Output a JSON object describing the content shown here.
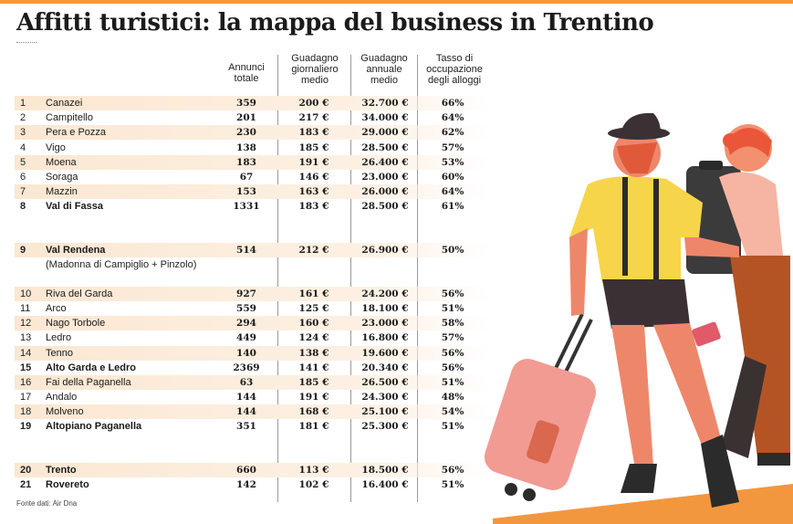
{
  "title": "Affitti turistici: la mappa del business in Trentino",
  "headers": {
    "annunci": "Annunci totale",
    "giornaliero": "Guadagno giornaliero medio",
    "annuale": "Guadagno annuale medio",
    "tasso": "Tasso di occupazione degli alloggi"
  },
  "rows": [
    {
      "n": "1",
      "name": "Canazei",
      "annunci": "359",
      "giorn": "200 €",
      "ann": "32.700 €",
      "tasso": "66%"
    },
    {
      "n": "2",
      "name": "Campitello",
      "annunci": "201",
      "giorn": "217 €",
      "ann": "34.000 €",
      "tasso": "64%"
    },
    {
      "n": "3",
      "name": "Pera e Pozza",
      "annunci": "230",
      "giorn": "183 €",
      "ann": "29.000 €",
      "tasso": "62%"
    },
    {
      "n": "4",
      "name": "Vigo",
      "annunci": "138",
      "giorn": "185 €",
      "ann": "28.500 €",
      "tasso": "57%"
    },
    {
      "n": "5",
      "name": "Moena",
      "annunci": "183",
      "giorn": "191 €",
      "ann": "26.400 €",
      "tasso": "53%"
    },
    {
      "n": "6",
      "name": "Soraga",
      "annunci": "67",
      "giorn": "146 €",
      "ann": "23.000 €",
      "tasso": "60%"
    },
    {
      "n": "7",
      "name": "Mazzin",
      "annunci": "153",
      "giorn": "163 €",
      "ann": "26.000 €",
      "tasso": "64%"
    },
    {
      "n": "8",
      "name": "Val di Fassa",
      "annunci": "1331",
      "giorn": "183 €",
      "ann": "28.500 €",
      "tasso": "61%"
    },
    {
      "n": "9",
      "name": "Val Rendena",
      "annunci": "514",
      "giorn": "212 €",
      "ann": "26.900 €",
      "tasso": "50%"
    },
    {
      "n": "10",
      "name": "Riva del Garda",
      "annunci": "927",
      "giorn": "161 €",
      "ann": "24.200 €",
      "tasso": "56%"
    },
    {
      "n": "11",
      "name": "Arco",
      "annunci": "559",
      "giorn": "125 €",
      "ann": "18.100 €",
      "tasso": "51%"
    },
    {
      "n": "12",
      "name": "Nago Torbole",
      "annunci": "294",
      "giorn": "160 €",
      "ann": "23.000 €",
      "tasso": "58%"
    },
    {
      "n": "13",
      "name": "Ledro",
      "annunci": "449",
      "giorn": "124 €",
      "ann": "16.800 €",
      "tasso": "57%"
    },
    {
      "n": "14",
      "name": "Tenno",
      "annunci": "140",
      "giorn": "138 €",
      "ann": "19.600 €",
      "tasso": "56%"
    },
    {
      "n": "15",
      "name": "Alto Garda e Ledro",
      "annunci": "2369",
      "giorn": "141 €",
      "ann": "20.340 €",
      "tasso": "56%"
    },
    {
      "n": "16",
      "name": "Fai della Paganella",
      "annunci": "63",
      "giorn": "185 €",
      "ann": "26.500 €",
      "tasso": "51%"
    },
    {
      "n": "17",
      "name": "Andalo",
      "annunci": "144",
      "giorn": "191 €",
      "ann": "24.300 €",
      "tasso": "48%"
    },
    {
      "n": "18",
      "name": "Molveno",
      "annunci": "144",
      "giorn": "168 €",
      "ann": "25.100 €",
      "tasso": "54%"
    },
    {
      "n": "19",
      "name": "Altopiano Paganella",
      "annunci": "351",
      "giorn": "181 €",
      "ann": "25.300 €",
      "tasso": "51%"
    },
    {
      "n": "20",
      "name": "Trento",
      "annunci": "660",
      "giorn": "113 €",
      "ann": "18.500 €",
      "tasso": "56%"
    },
    {
      "n": "21",
      "name": "Rovereto",
      "annunci": "142",
      "giorn": "102 €",
      "ann": "16.400 €",
      "tasso": "51%"
    }
  ],
  "rendena_note": "(Madonna di Campiglio + Pinzolo)",
  "footer": "Fonte dati: Air Dna"
}
